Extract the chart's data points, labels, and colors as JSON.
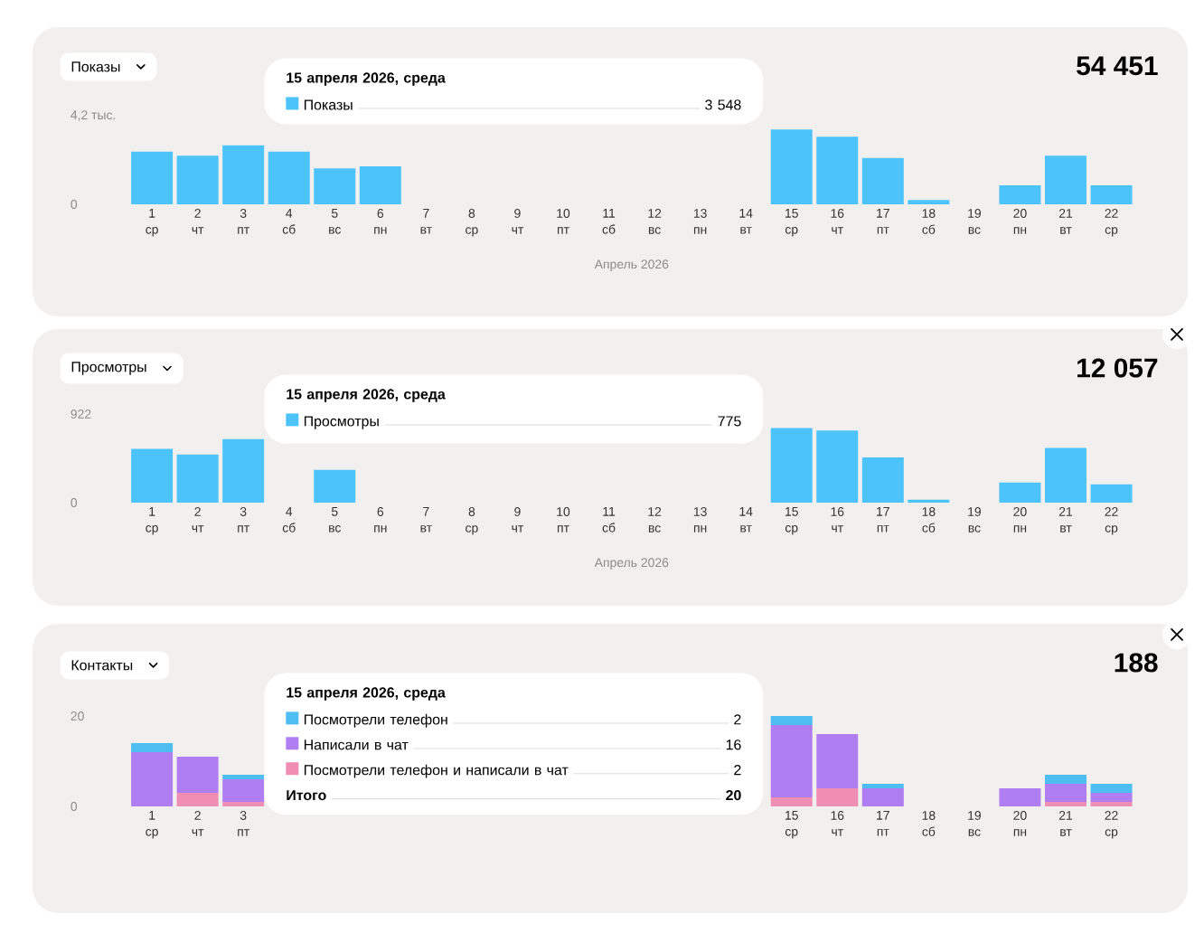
{
  "chart_data": [
    {
      "type": "bar",
      "title": "Показы",
      "xlabel": "Апрель 2026",
      "categories": [
        "1 ср",
        "2 чт",
        "3 пт",
        "4 сб",
        "5 вс",
        "6 пн",
        "7 вт",
        "8 ср",
        "9 чт",
        "10 пт",
        "11 сб",
        "12 вс",
        "13 пн",
        "14 вт",
        "15 ср",
        "16 чт",
        "17 пт",
        "18 сб",
        "19 вс",
        "20 пн",
        "21 вт",
        "22 ср"
      ],
      "series": [
        {
          "name": "Показы",
          "color": "#4cc3fb",
          "values": [
            2.5,
            2.3,
            2.8,
            2.5,
            1.7,
            1.8,
            null,
            null,
            null,
            null,
            null,
            null,
            null,
            null,
            3.548,
            3.2,
            2.2,
            0.2,
            0,
            0.9,
            2.3,
            0.9
          ]
        }
      ],
      "ylim": [
        0,
        4.2
      ],
      "yticks": [
        0,
        {
          "value": 4.2,
          "label": "4,2 тыс."
        }
      ],
      "legend": "top",
      "annotations": [
        "54 451",
        "15 апреля 2026, среда",
        "3 548"
      ]
    },
    {
      "type": "bar",
      "title": "Просмотры",
      "xlabel": "Апрель 2026",
      "categories": [
        "1 ср",
        "2 чт",
        "3 пт",
        "4 сб",
        "5 вс",
        "6 пн",
        "7 вт",
        "8 ср",
        "9 чт",
        "10 пт",
        "11 сб",
        "12 вс",
        "13 пн",
        "14 вт",
        "15 ср",
        "16 чт",
        "17 пт",
        "18 сб",
        "19 вс",
        "20 пн",
        "21 вт",
        "22 ср"
      ],
      "series": [
        {
          "name": "Просмотры",
          "color": "#4cc3fb",
          "values": [
            560,
            500,
            660,
            null,
            340,
            null,
            null,
            null,
            null,
            null,
            null,
            null,
            null,
            null,
            775,
            750,
            470,
            30,
            0,
            210,
            570,
            190
          ]
        }
      ],
      "ylim": [
        0,
        922
      ],
      "yticks": [
        0,
        922
      ],
      "legend": "top",
      "annotations": [
        "12 057",
        "15 апреля 2026, среда",
        "775"
      ]
    },
    {
      "type": "bar",
      "title": "Контакты",
      "stacked": true,
      "categories": [
        "1 ср",
        "2 чт",
        "3 пт",
        null,
        null,
        null,
        null,
        null,
        null,
        null,
        null,
        null,
        null,
        null,
        "15 ср",
        "16 чт",
        "17 пт",
        "18 сб",
        "19 вс",
        "20 пн",
        "21 вт",
        "22 ср"
      ],
      "series": [
        {
          "name": "Посмотрели телефон и написали в чат",
          "color": "#f08db2",
          "values": [
            0,
            3,
            1,
            null,
            null,
            null,
            null,
            null,
            null,
            null,
            null,
            null,
            null,
            null,
            2,
            4,
            0,
            0,
            0,
            0,
            1,
            1
          ]
        },
        {
          "name": "Написали в чат",
          "color": "#b07ef3",
          "values": [
            12,
            8,
            5,
            null,
            null,
            null,
            null,
            null,
            null,
            null,
            null,
            null,
            null,
            null,
            16,
            12,
            4,
            0,
            0,
            4,
            4,
            2
          ]
        },
        {
          "name": "Посмотрели телефон",
          "color": "#4ebdf2",
          "values": [
            2,
            0,
            1,
            null,
            null,
            null,
            null,
            null,
            null,
            null,
            null,
            null,
            null,
            null,
            2,
            0,
            1,
            0,
            0,
            0,
            2,
            2
          ]
        }
      ],
      "ylim": [
        0,
        20
      ],
      "yticks": [
        0,
        20
      ],
      "legend": "top",
      "annotations": [
        "188",
        "15 апреля 2026, среда",
        "2",
        "16",
        "2",
        "Итого",
        "20"
      ]
    }
  ]
}
